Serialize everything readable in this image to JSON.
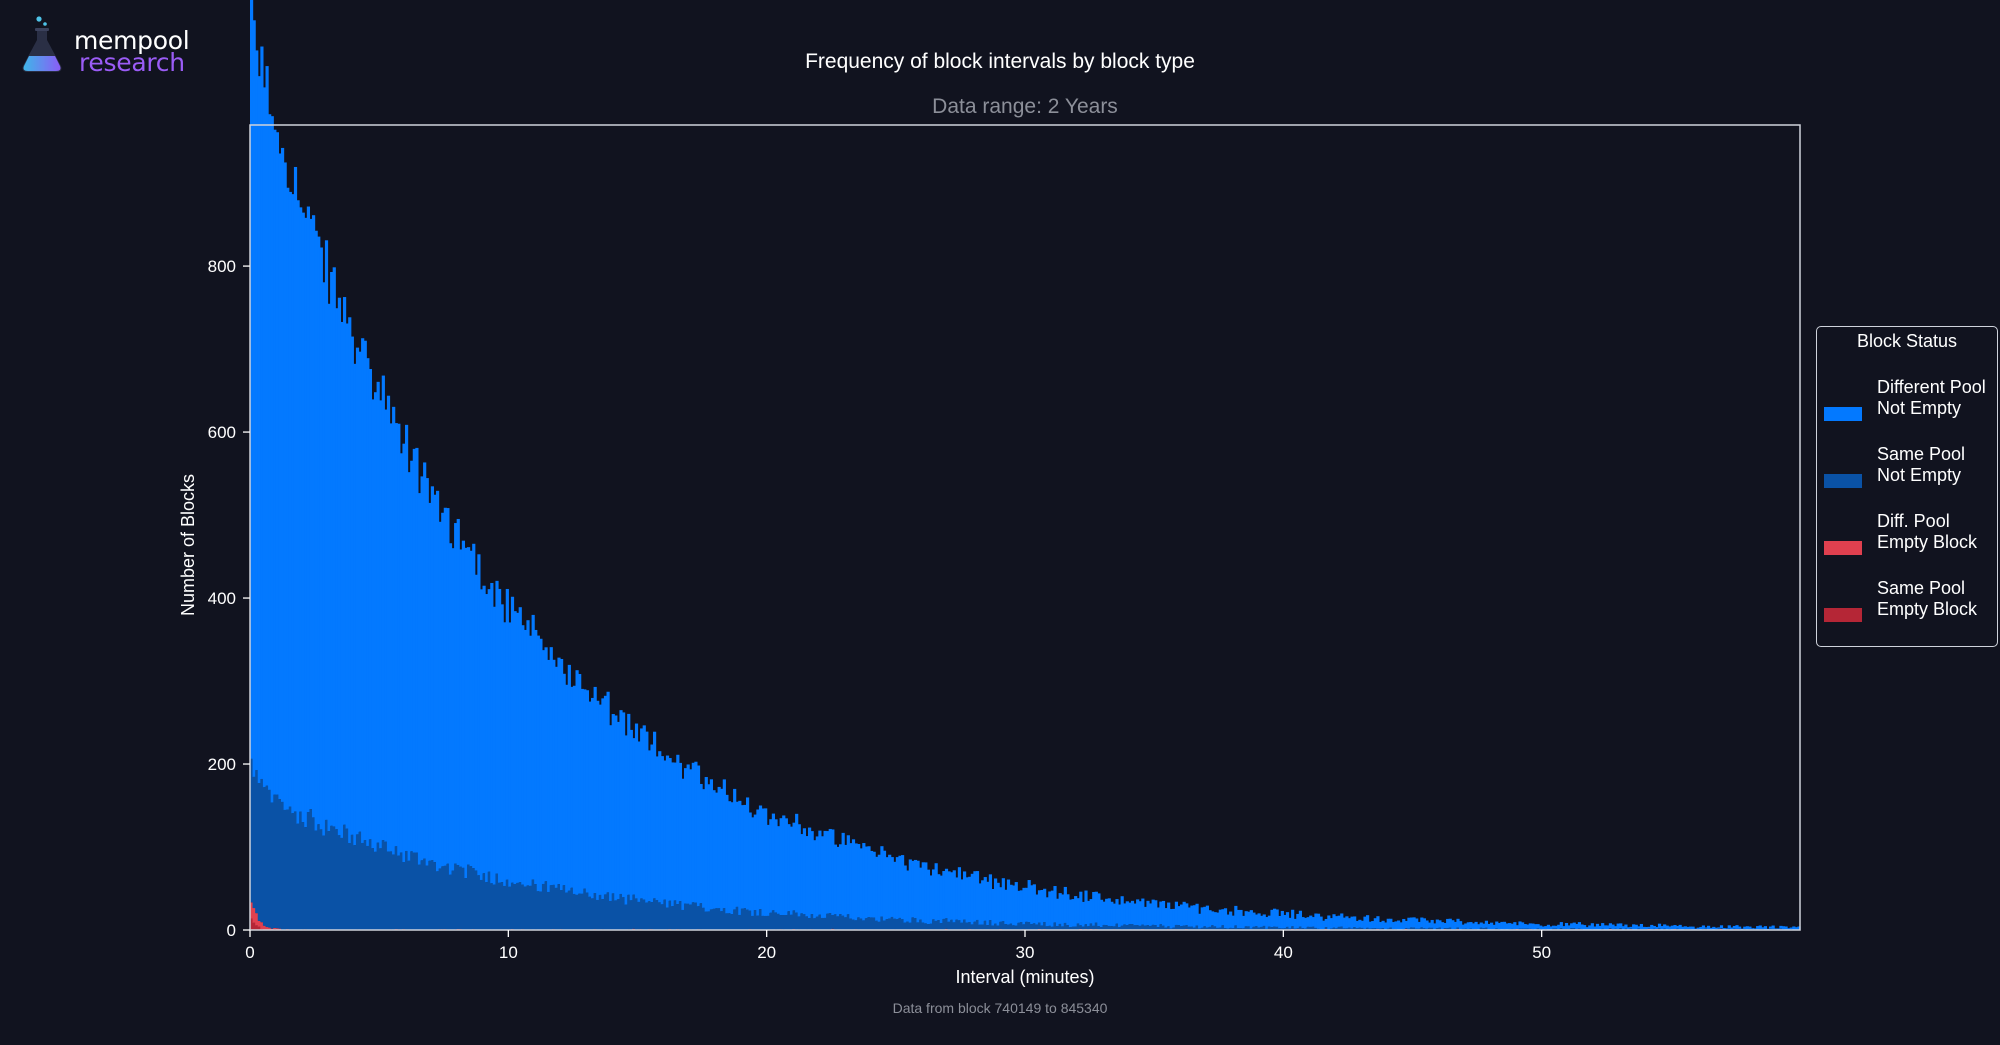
{
  "brand": {
    "word1": "mempool",
    "word2": "research",
    "logo_icon": "flask-icon",
    "colors": {
      "primary": "#9b5cf6",
      "accent": "#4ec3e8"
    }
  },
  "chart_data": {
    "type": "bar",
    "stacked": true,
    "title": "Frequency of block intervals by block type",
    "subtitle": "Data range: 2 Years",
    "xlabel": "Interval (minutes)",
    "ylabel": "Number of Blocks",
    "footnote": "Data from block 740149 to 845340",
    "xlim": [
      0,
      60
    ],
    "ylim": [
      0,
      970
    ],
    "xticks": [
      0,
      10,
      20,
      30,
      40,
      50
    ],
    "yticks": [
      0,
      200,
      400,
      600,
      800
    ],
    "grid": false,
    "legend": {
      "title": "Block Status",
      "placement": "right"
    },
    "bins_per_minute": 10,
    "series": [
      {
        "name": "Same Pool\nEmpty Block",
        "color": "#b52636",
        "peak": 16,
        "decay_minutes": 0.2
      },
      {
        "name": "Diff. Pool\nEmpty Block",
        "color": "#e0404f",
        "peak": 25,
        "decay_minutes": 0.35
      },
      {
        "name": "Same Pool\nNot Empty",
        "color": "#0a52a6",
        "peak": 170,
        "decay_minutes": 9.5
      },
      {
        "name": "Different Pool\nNot Empty",
        "color": "#0379ff",
        "peak": 900,
        "decay_minutes": 10.0
      }
    ],
    "axis_color": "#ffffff",
    "frame_color": "#cfd3dc",
    "subtitle_color": "#8c8f99",
    "footnote_color": "#8c8f99"
  }
}
